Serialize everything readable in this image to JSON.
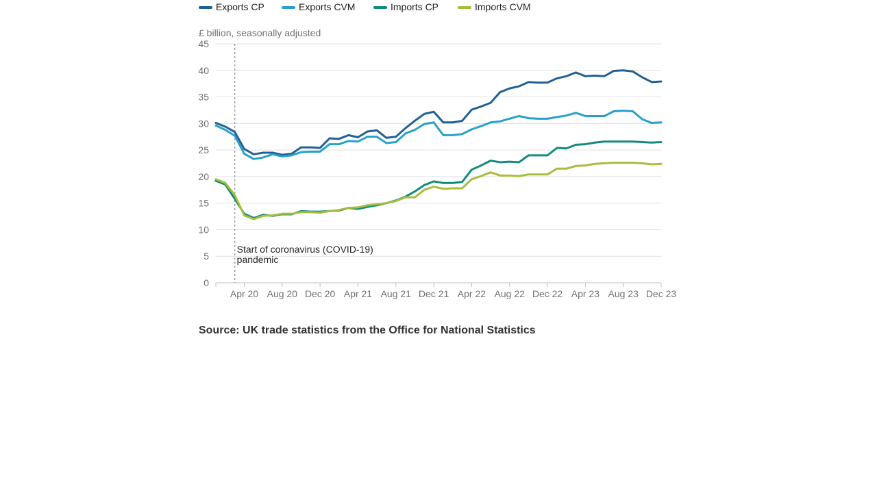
{
  "chart_data": {
    "type": "line",
    "unit_label": "£ billion, seasonally adjusted",
    "ylim": [
      0,
      45
    ],
    "yticks": [
      0,
      5,
      10,
      15,
      20,
      25,
      30,
      35,
      40,
      45
    ],
    "x_ticks": [
      {
        "index": 2,
        "label": "Apr 20"
      },
      {
        "index": 6,
        "label": "Aug 20"
      },
      {
        "index": 10,
        "label": "Dec 20"
      },
      {
        "index": 14,
        "label": "Apr 21"
      },
      {
        "index": 18,
        "label": "Aug 21"
      },
      {
        "index": 22,
        "label": "Dec 21"
      },
      {
        "index": 26,
        "label": "Apr 22"
      },
      {
        "index": 30,
        "label": "Aug 22"
      },
      {
        "index": 34,
        "label": "Dec 22"
      },
      {
        "index": 38,
        "label": "Apr 23"
      },
      {
        "index": 42,
        "label": "Aug 23"
      },
      {
        "index": 46,
        "label": "Dec 23"
      }
    ],
    "x": [
      "Jan 20",
      "Feb 20",
      "Mar 20",
      "Apr 20",
      "May 20",
      "Jun 20",
      "Jul 20",
      "Aug 20",
      "Sep 20",
      "Oct 20",
      "Nov 20",
      "Dec 20",
      "Jan 21",
      "Feb 21",
      "Mar 21",
      "Apr 21",
      "May 21",
      "Jun 21",
      "Jul 21",
      "Aug 21",
      "Sep 21",
      "Oct 21",
      "Nov 21",
      "Dec 21",
      "Jan 22",
      "Feb 22",
      "Mar 22",
      "Apr 22",
      "May 22",
      "Jun 22",
      "Jul 22",
      "Aug 22",
      "Sep 22",
      "Oct 22",
      "Nov 22",
      "Dec 22",
      "Jan 23",
      "Feb 23",
      "Mar 23",
      "Apr 23",
      "May 23",
      "Jun 23",
      "Jul 23",
      "Aug 23",
      "Sep 23",
      "Oct 23",
      "Nov 23",
      "Dec 23"
    ],
    "series": [
      {
        "name": "Exports CP",
        "color": "#206095",
        "values": [
          30.1,
          29.4,
          28.4,
          25.2,
          24.2,
          24.5,
          24.5,
          24.1,
          24.3,
          25.5,
          25.5,
          25.4,
          27.2,
          27.1,
          27.8,
          27.4,
          28.5,
          28.7,
          27.3,
          27.5,
          29.1,
          30.5,
          31.8,
          32.2,
          30.2,
          30.2,
          30.5,
          32.6,
          33.2,
          33.9,
          35.9,
          36.6,
          37.0,
          37.8,
          37.7,
          37.7,
          38.5,
          38.9,
          39.6,
          38.9,
          39.0,
          38.9,
          39.9,
          40.0,
          39.8,
          38.7,
          37.8,
          37.9
        ]
      },
      {
        "name": "Exports CVM",
        "color": "#27A0CC",
        "values": [
          29.6,
          28.8,
          27.7,
          24.3,
          23.3,
          23.6,
          24.2,
          23.8,
          24.0,
          24.6,
          24.7,
          24.7,
          26.1,
          26.1,
          26.7,
          26.6,
          27.5,
          27.5,
          26.3,
          26.5,
          28.1,
          28.8,
          29.9,
          30.2,
          27.8,
          27.8,
          28.0,
          28.9,
          29.5,
          30.2,
          30.4,
          30.9,
          31.4,
          31.0,
          30.9,
          30.9,
          31.2,
          31.5,
          32.0,
          31.4,
          31.4,
          31.4,
          32.3,
          32.4,
          32.3,
          30.8,
          30.1,
          30.2
        ]
      },
      {
        "name": "Imports CP",
        "color": "#118C7B",
        "values": [
          19.2,
          18.5,
          15.8,
          13.0,
          12.2,
          12.8,
          12.6,
          12.9,
          12.9,
          13.5,
          13.4,
          13.4,
          13.5,
          13.6,
          14.1,
          13.9,
          14.3,
          14.6,
          15.0,
          15.5,
          16.2,
          17.2,
          18.4,
          19.1,
          18.8,
          18.8,
          19.0,
          21.3,
          22.1,
          23.0,
          22.7,
          22.8,
          22.7,
          24.0,
          24.0,
          24.0,
          25.4,
          25.3,
          26.0,
          26.1,
          26.4,
          26.6,
          26.6,
          26.6,
          26.6,
          26.5,
          26.4,
          26.5
        ]
      },
      {
        "name": "Imports CVM",
        "color": "#A8BD3A",
        "values": [
          19.5,
          18.8,
          16.5,
          12.7,
          12.0,
          12.6,
          12.7,
          13.0,
          13.0,
          13.3,
          13.3,
          13.2,
          13.5,
          13.7,
          14.1,
          14.2,
          14.6,
          14.8,
          15.0,
          15.4,
          16.1,
          16.1,
          17.5,
          18.1,
          17.7,
          17.8,
          17.8,
          19.5,
          20.1,
          20.8,
          20.2,
          20.2,
          20.1,
          20.4,
          20.4,
          20.4,
          21.5,
          21.5,
          22.0,
          22.1,
          22.4,
          22.5,
          22.6,
          22.6,
          22.6,
          22.5,
          22.3,
          22.4
        ]
      }
    ],
    "annotation": {
      "index": 2,
      "lines": [
        "Start of coronavirus (COVID-19)",
        "pandemic"
      ]
    },
    "grid": true,
    "legend_position": "top"
  },
  "source": "Source: UK trade statistics from the Office for National Statistics"
}
